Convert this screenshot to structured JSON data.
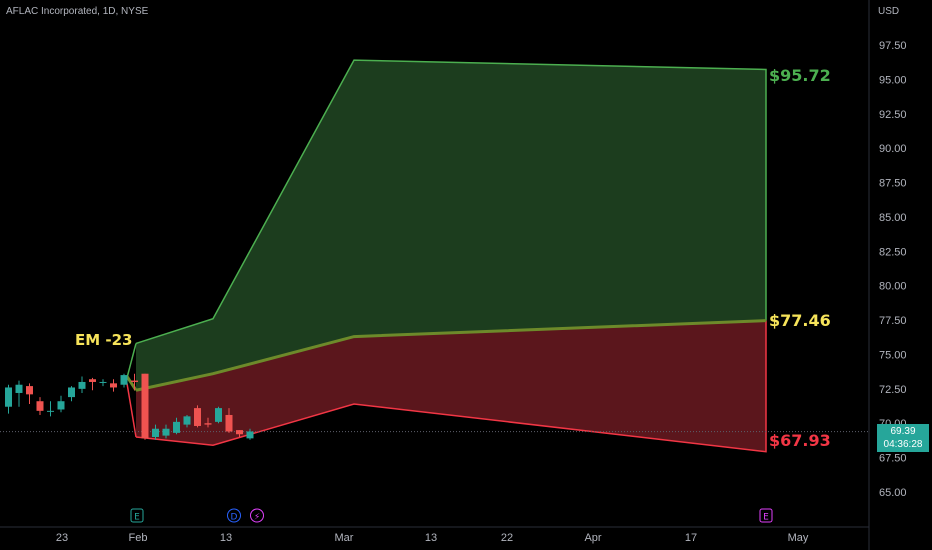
{
  "header": {
    "title": "AFLAC Incorporated, 1D, NYSE",
    "currency": "USD"
  },
  "last_price": {
    "value": "69.39",
    "countdown": "04:36:28"
  },
  "annotations": {
    "em_label": "EM -23",
    "upper_value": "$95.72",
    "mid_value": "$77.46",
    "lower_value": "$67.93"
  },
  "event_markers": [
    "E",
    "D",
    "⚡",
    "E"
  ],
  "colors": {
    "upper_area": "#1c3d1e",
    "upper_line": "#4caf50",
    "lower_area": "#5b161c",
    "lower_line": "#f23645",
    "mid_line": "#6d8a2a",
    "em_text": "#f6e35a",
    "up_candle": "#26a69a",
    "down_candle": "#ef5350"
  },
  "chart_data": {
    "type": "candlestick",
    "ylim": [
      62.5,
      100
    ],
    "y_ticks": [
      "97.50",
      "95.00",
      "92.50",
      "90.00",
      "87.50",
      "85.00",
      "82.50",
      "80.00",
      "77.50",
      "75.00",
      "72.50",
      "70.00",
      "67.50",
      "65.00"
    ],
    "x_ticks": [
      "23",
      "Feb",
      "13",
      "Mar",
      "13",
      "22",
      "Apr",
      "17",
      "May"
    ],
    "candles": [
      {
        "o": 71.2,
        "h": 72.8,
        "l": 70.7,
        "c": 72.6
      },
      {
        "o": 72.2,
        "h": 73.1,
        "l": 71.2,
        "c": 72.8
      },
      {
        "o": 72.7,
        "h": 72.9,
        "l": 71.4,
        "c": 72.1
      },
      {
        "o": 71.6,
        "h": 71.9,
        "l": 70.6,
        "c": 70.9
      },
      {
        "o": 70.9,
        "h": 71.6,
        "l": 70.5,
        "c": 70.9
      },
      {
        "o": 71.0,
        "h": 72.0,
        "l": 70.8,
        "c": 71.6
      },
      {
        "o": 71.9,
        "h": 72.7,
        "l": 71.6,
        "c": 72.6
      },
      {
        "o": 72.5,
        "h": 73.4,
        "l": 72.2,
        "c": 73.0
      },
      {
        "o": 73.2,
        "h": 73.3,
        "l": 72.4,
        "c": 73.0
      },
      {
        "o": 73.0,
        "h": 73.2,
        "l": 72.7,
        "c": 73.0
      },
      {
        "o": 72.9,
        "h": 73.2,
        "l": 72.3,
        "c": 72.6
      },
      {
        "o": 72.8,
        "h": 73.6,
        "l": 72.6,
        "c": 73.5
      },
      {
        "o": 73.1,
        "h": 73.6,
        "l": 72.4,
        "c": 73.0
      },
      {
        "o": 73.6,
        "h": 73.6,
        "l": 68.8,
        "c": 68.9
      },
      {
        "o": 69.0,
        "h": 69.9,
        "l": 68.8,
        "c": 69.6
      },
      {
        "o": 69.1,
        "h": 69.9,
        "l": 68.9,
        "c": 69.6
      },
      {
        "o": 69.3,
        "h": 70.4,
        "l": 69.2,
        "c": 70.1
      },
      {
        "o": 69.9,
        "h": 70.6,
        "l": 69.7,
        "c": 70.5
      },
      {
        "o": 71.1,
        "h": 71.3,
        "l": 69.7,
        "c": 69.8
      },
      {
        "o": 70.0,
        "h": 70.4,
        "l": 69.7,
        "c": 69.9
      },
      {
        "o": 70.1,
        "h": 71.2,
        "l": 70.0,
        "c": 71.1
      },
      {
        "o": 70.6,
        "h": 71.1,
        "l": 69.3,
        "c": 69.4
      },
      {
        "o": 69.5,
        "h": 69.5,
        "l": 69.0,
        "c": 69.2
      },
      {
        "o": 68.9,
        "h": 69.6,
        "l": 68.8,
        "c": 69.4
      }
    ],
    "expected_move": {
      "upper": [
        [
          0,
          75.8
        ],
        [
          1,
          77.6
        ],
        [
          2,
          96.4
        ],
        [
          3,
          95.72
        ]
      ],
      "mid": [
        [
          0,
          72.4
        ],
        [
          1,
          73.6
        ],
        [
          2,
          76.3
        ],
        [
          3,
          77.46
        ]
      ],
      "lower": [
        [
          0,
          69.0
        ],
        [
          1,
          68.4
        ],
        [
          2,
          71.4
        ],
        [
          3,
          67.93
        ]
      ]
    },
    "last_price": 69.39
  }
}
